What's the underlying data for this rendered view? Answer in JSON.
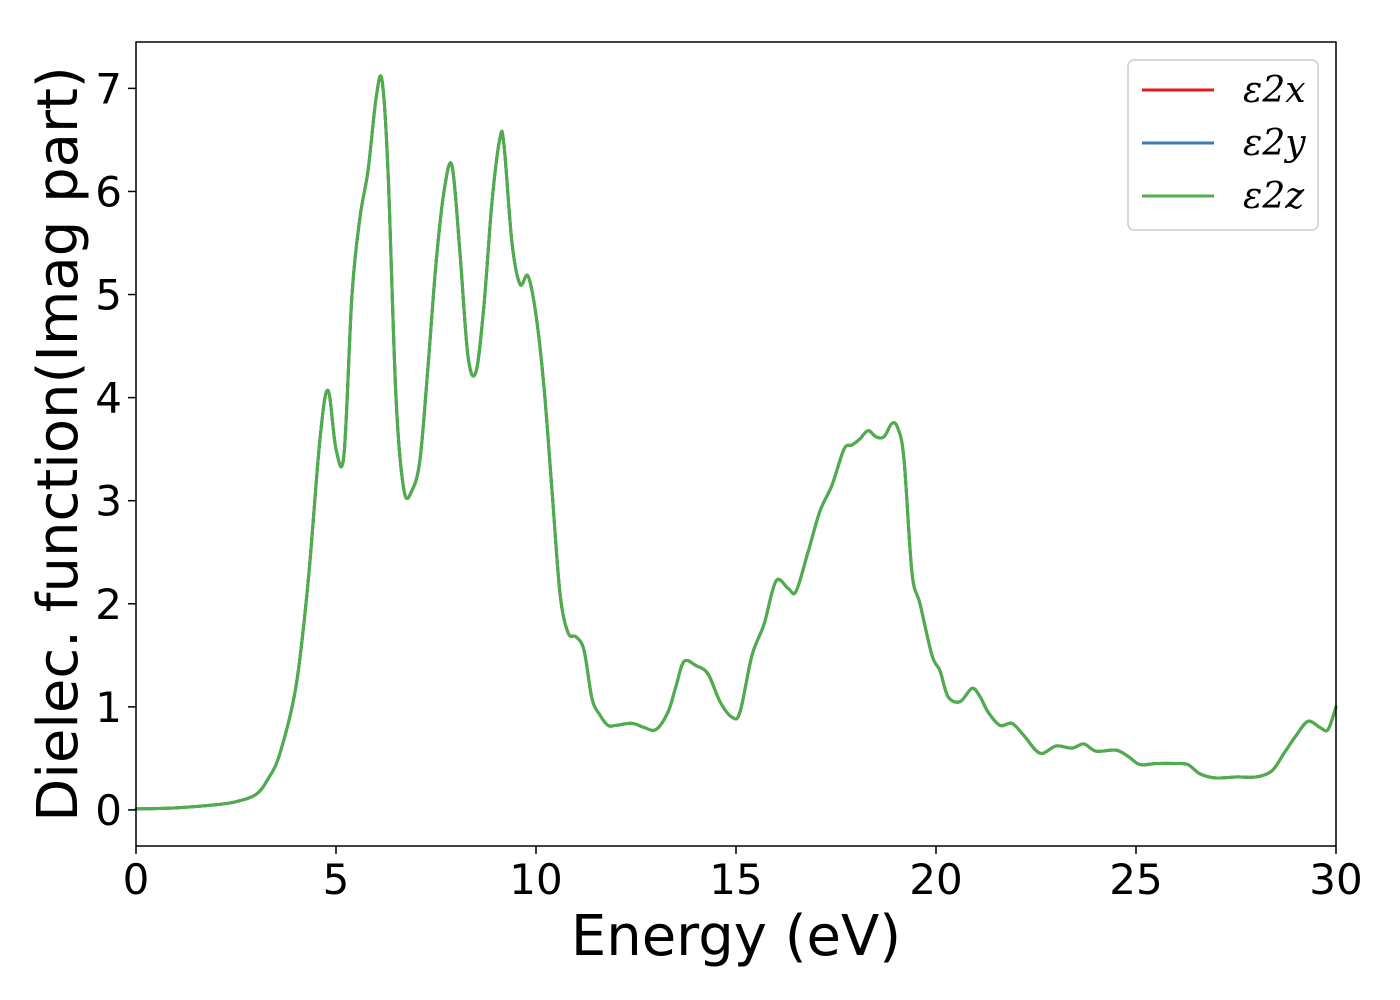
{
  "chart_data": {
    "type": "line",
    "xlabel": "Energy (eV)",
    "ylabel": "Dielec. function(Imag part)",
    "xlim": [
      0,
      30
    ],
    "ylim": [
      -0.35,
      7.45
    ],
    "xticks": [
      0,
      5,
      10,
      15,
      20,
      25,
      30
    ],
    "yticks": [
      0,
      1,
      2,
      3,
      4,
      5,
      6,
      7
    ],
    "grid": false,
    "legend_position": "top-right",
    "series": [
      {
        "name": "ε2x",
        "color": "#e41a1c",
        "x": [
          0,
          1,
          2,
          2.5,
          3,
          3.3,
          3.6,
          4,
          4.3,
          4.6,
          4.8,
          5,
          5.2,
          5.4,
          5.6,
          5.8,
          6,
          6.15,
          6.3,
          6.5,
          6.7,
          6.9,
          7.1,
          7.3,
          7.5,
          7.7,
          7.9,
          8.1,
          8.3,
          8.5,
          8.7,
          8.9,
          9.1,
          9.2,
          9.4,
          9.6,
          9.8,
          10,
          10.2,
          10.4,
          10.6,
          10.8,
          11,
          11.2,
          11.4,
          11.6,
          11.8,
          12,
          12.4,
          12.7,
          13,
          13.3,
          13.5,
          13.7,
          14,
          14.3,
          14.6,
          14.9,
          15.1,
          15.4,
          15.7,
          16,
          16.3,
          16.5,
          16.8,
          17.1,
          17.4,
          17.7,
          17.9,
          18.1,
          18.3,
          18.5,
          18.7,
          18.9,
          19.05,
          19.2,
          19.4,
          19.6,
          19.9,
          20.1,
          20.3,
          20.6,
          20.9,
          21.1,
          21.3,
          21.6,
          21.9,
          22.2,
          22.6,
          23,
          23.4,
          23.7,
          24,
          24.5,
          24.8,
          25.1,
          25.5,
          26,
          26.3,
          26.6,
          27,
          27.5,
          28,
          28.4,
          28.7,
          29,
          29.3,
          29.6,
          29.8,
          30
        ],
        "values": [
          0.01,
          0.02,
          0.05,
          0.08,
          0.15,
          0.3,
          0.55,
          1.2,
          2.2,
          3.6,
          4.07,
          3.5,
          3.45,
          5.0,
          5.75,
          6.2,
          6.9,
          7.08,
          6.2,
          4.0,
          3.1,
          3.1,
          3.4,
          4.3,
          5.3,
          6.0,
          6.25,
          5.4,
          4.4,
          4.25,
          4.9,
          5.9,
          6.52,
          6.45,
          5.5,
          5.1,
          5.18,
          4.8,
          4.1,
          3.1,
          2.1,
          1.72,
          1.68,
          1.55,
          1.08,
          0.92,
          0.82,
          0.82,
          0.84,
          0.8,
          0.78,
          0.95,
          1.2,
          1.44,
          1.4,
          1.32,
          1.05,
          0.9,
          0.95,
          1.5,
          1.8,
          2.22,
          2.15,
          2.12,
          2.5,
          2.9,
          3.15,
          3.5,
          3.54,
          3.6,
          3.68,
          3.62,
          3.62,
          3.75,
          3.7,
          3.4,
          2.3,
          2.0,
          1.5,
          1.35,
          1.1,
          1.05,
          1.18,
          1.1,
          0.95,
          0.82,
          0.84,
          0.72,
          0.55,
          0.62,
          0.6,
          0.64,
          0.57,
          0.58,
          0.52,
          0.44,
          0.45,
          0.45,
          0.44,
          0.35,
          0.31,
          0.32,
          0.32,
          0.38,
          0.55,
          0.72,
          0.86,
          0.8,
          0.78,
          1.0
        ]
      },
      {
        "name": "ε2y",
        "color": "#377eb8",
        "x": [
          0,
          1,
          2,
          2.5,
          3,
          3.3,
          3.6,
          4,
          4.3,
          4.6,
          4.8,
          5,
          5.2,
          5.4,
          5.6,
          5.8,
          6,
          6.15,
          6.3,
          6.5,
          6.7,
          6.9,
          7.1,
          7.3,
          7.5,
          7.7,
          7.9,
          8.1,
          8.3,
          8.5,
          8.7,
          8.9,
          9.1,
          9.2,
          9.4,
          9.6,
          9.8,
          10,
          10.2,
          10.4,
          10.6,
          10.8,
          11,
          11.2,
          11.4,
          11.6,
          11.8,
          12,
          12.4,
          12.7,
          13,
          13.3,
          13.5,
          13.7,
          14,
          14.3,
          14.6,
          14.9,
          15.1,
          15.4,
          15.7,
          16,
          16.3,
          16.5,
          16.8,
          17.1,
          17.4,
          17.7,
          17.9,
          18.1,
          18.3,
          18.5,
          18.7,
          18.9,
          19.05,
          19.2,
          19.4,
          19.6,
          19.9,
          20.1,
          20.3,
          20.6,
          20.9,
          21.1,
          21.3,
          21.6,
          21.9,
          22.2,
          22.6,
          23,
          23.4,
          23.7,
          24,
          24.5,
          24.8,
          25.1,
          25.5,
          26,
          26.3,
          26.6,
          27,
          27.5,
          28,
          28.4,
          28.7,
          29,
          29.3,
          29.6,
          29.8,
          30
        ],
        "values": [
          0.01,
          0.02,
          0.05,
          0.08,
          0.15,
          0.3,
          0.55,
          1.2,
          2.2,
          3.6,
          4.07,
          3.5,
          3.45,
          5.0,
          5.75,
          6.2,
          6.9,
          7.08,
          6.2,
          4.0,
          3.1,
          3.1,
          3.4,
          4.3,
          5.3,
          6.0,
          6.25,
          5.4,
          4.4,
          4.25,
          4.9,
          5.9,
          6.52,
          6.45,
          5.5,
          5.1,
          5.18,
          4.8,
          4.1,
          3.1,
          2.1,
          1.72,
          1.68,
          1.55,
          1.08,
          0.92,
          0.82,
          0.82,
          0.84,
          0.8,
          0.78,
          0.95,
          1.2,
          1.44,
          1.4,
          1.32,
          1.05,
          0.9,
          0.95,
          1.5,
          1.8,
          2.22,
          2.15,
          2.12,
          2.5,
          2.9,
          3.15,
          3.5,
          3.54,
          3.6,
          3.68,
          3.62,
          3.62,
          3.75,
          3.7,
          3.4,
          2.3,
          2.0,
          1.5,
          1.35,
          1.1,
          1.05,
          1.18,
          1.1,
          0.95,
          0.82,
          0.84,
          0.72,
          0.55,
          0.62,
          0.6,
          0.64,
          0.57,
          0.58,
          0.52,
          0.44,
          0.45,
          0.45,
          0.44,
          0.35,
          0.31,
          0.32,
          0.32,
          0.38,
          0.55,
          0.72,
          0.86,
          0.8,
          0.78,
          1.0
        ]
      },
      {
        "name": "ε2z",
        "color": "#4daf4a",
        "x": [
          0,
          1,
          2,
          2.5,
          3,
          3.3,
          3.6,
          4,
          4.3,
          4.6,
          4.8,
          5,
          5.2,
          5.4,
          5.6,
          5.8,
          6,
          6.15,
          6.3,
          6.5,
          6.7,
          6.9,
          7.1,
          7.3,
          7.5,
          7.7,
          7.9,
          8.1,
          8.3,
          8.5,
          8.7,
          8.9,
          9.1,
          9.2,
          9.4,
          9.6,
          9.8,
          10,
          10.2,
          10.4,
          10.6,
          10.8,
          11,
          11.2,
          11.4,
          11.6,
          11.8,
          12,
          12.4,
          12.7,
          13,
          13.3,
          13.5,
          13.7,
          14,
          14.3,
          14.6,
          14.9,
          15.1,
          15.4,
          15.7,
          16,
          16.3,
          16.5,
          16.8,
          17.1,
          17.4,
          17.7,
          17.9,
          18.1,
          18.3,
          18.5,
          18.7,
          18.9,
          19.05,
          19.2,
          19.4,
          19.6,
          19.9,
          20.1,
          20.3,
          20.6,
          20.9,
          21.1,
          21.3,
          21.6,
          21.9,
          22.2,
          22.6,
          23,
          23.4,
          23.7,
          24,
          24.5,
          24.8,
          25.1,
          25.5,
          26,
          26.3,
          26.6,
          27,
          27.5,
          28,
          28.4,
          28.7,
          29,
          29.3,
          29.6,
          29.8,
          30
        ],
        "values": [
          0.01,
          0.02,
          0.05,
          0.08,
          0.15,
          0.3,
          0.55,
          1.2,
          2.2,
          3.6,
          4.07,
          3.5,
          3.45,
          5.0,
          5.75,
          6.2,
          6.9,
          7.08,
          6.2,
          4.0,
          3.1,
          3.1,
          3.4,
          4.3,
          5.3,
          6.0,
          6.25,
          5.4,
          4.4,
          4.25,
          4.9,
          5.9,
          6.52,
          6.45,
          5.5,
          5.1,
          5.18,
          4.8,
          4.1,
          3.1,
          2.1,
          1.72,
          1.68,
          1.55,
          1.08,
          0.92,
          0.82,
          0.82,
          0.84,
          0.8,
          0.78,
          0.95,
          1.2,
          1.44,
          1.4,
          1.32,
          1.05,
          0.9,
          0.95,
          1.5,
          1.8,
          2.22,
          2.15,
          2.12,
          2.5,
          2.9,
          3.15,
          3.5,
          3.54,
          3.6,
          3.68,
          3.62,
          3.62,
          3.75,
          3.7,
          3.4,
          2.3,
          2.0,
          1.5,
          1.35,
          1.1,
          1.05,
          1.18,
          1.1,
          0.95,
          0.82,
          0.84,
          0.72,
          0.55,
          0.62,
          0.6,
          0.64,
          0.57,
          0.58,
          0.52,
          0.44,
          0.45,
          0.45,
          0.44,
          0.35,
          0.31,
          0.32,
          0.32,
          0.38,
          0.55,
          0.72,
          0.86,
          0.8,
          0.78,
          1.0
        ]
      }
    ]
  }
}
